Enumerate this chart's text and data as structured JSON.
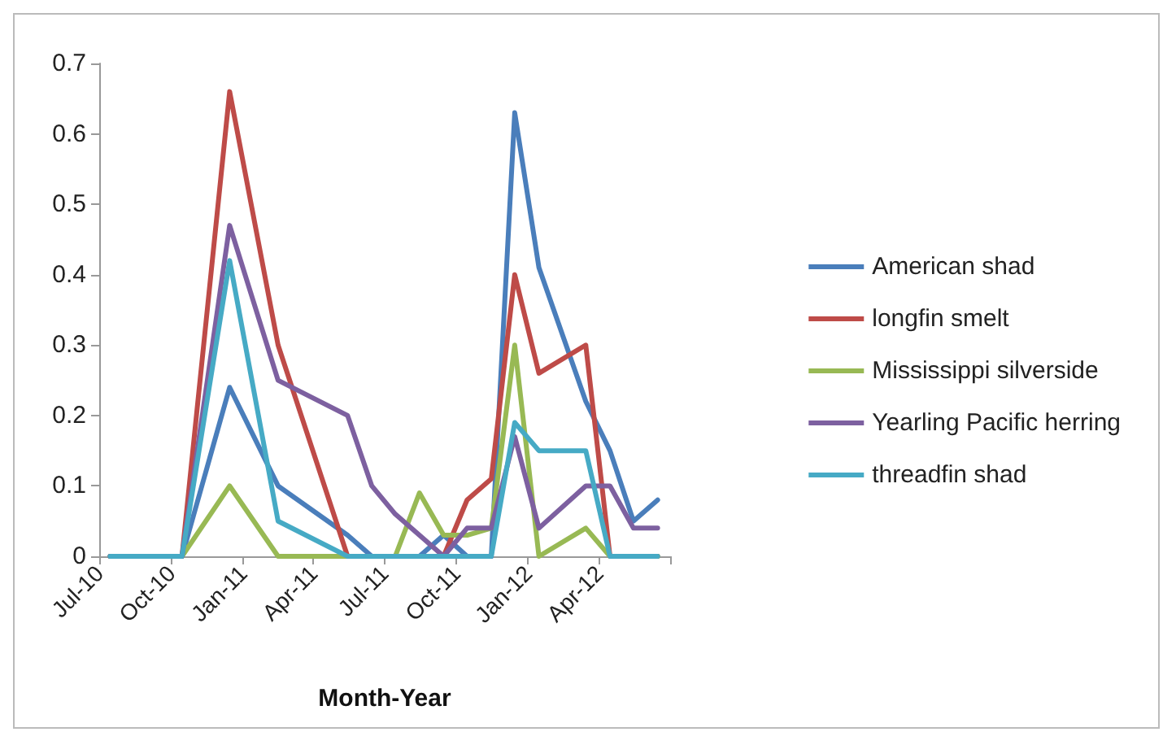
{
  "chart_data": {
    "type": "line",
    "xlabel": "Month-Year",
    "x": [
      "2010-07-15",
      "2010-10-15",
      "2010-12-15",
      "2011-02-15",
      "2011-05-15",
      "2011-06-15",
      "2011-07-15",
      "2011-08-15",
      "2011-09-15",
      "2011-10-15",
      "2011-11-15",
      "2011-12-15",
      "2012-01-15",
      "2012-03-15",
      "2012-04-15",
      "2012-05-15",
      "2012-06-15"
    ],
    "series": [
      {
        "name": "American shad",
        "color": "#4a7ebb",
        "values": [
          0,
          0,
          0.24,
          0.1,
          0.03,
          0,
          0,
          0,
          0.03,
          0,
          0,
          0.63,
          0.41,
          0.22,
          0.15,
          0.05,
          0.08
        ]
      },
      {
        "name": "longfin smelt",
        "color": "#be4b48",
        "values": [
          0,
          0,
          0.66,
          0.3,
          0,
          0,
          0,
          0,
          0,
          0.08,
          0.11,
          0.4,
          0.26,
          0.3,
          0,
          0,
          0
        ]
      },
      {
        "name": "Mississippi silverside",
        "color": "#98b954",
        "values": [
          0,
          0,
          0.1,
          0,
          0,
          0,
          0,
          0.09,
          0.03,
          0.03,
          0.04,
          0.3,
          0,
          0.04,
          0,
          0,
          0
        ]
      },
      {
        "name": "Yearling Pacific herring",
        "color": "#7d60a0",
        "values": [
          0,
          0,
          0.47,
          0.25,
          0.2,
          0.1,
          0.06,
          0.03,
          0,
          0.04,
          0.04,
          0.17,
          0.04,
          0.1,
          0.1,
          0.04,
          0.04
        ]
      },
      {
        "name": "threadfin shad",
        "color": "#46aac5",
        "values": [
          0,
          0,
          0.42,
          0.05,
          0,
          0,
          0,
          0,
          0,
          0,
          0,
          0.19,
          0.15,
          0.15,
          0,
          0,
          0
        ]
      }
    ],
    "xlim": [
      "2010-07-01",
      "2012-07-01"
    ],
    "xticks": [
      {
        "value": "2010-07-01",
        "label": "Jul-10"
      },
      {
        "value": "2010-10-01",
        "label": "Oct-10"
      },
      {
        "value": "2011-01-01",
        "label": "Jan-11"
      },
      {
        "value": "2011-04-01",
        "label": "Apr-11"
      },
      {
        "value": "2011-07-01",
        "label": "Jul-11"
      },
      {
        "value": "2011-10-01",
        "label": "Oct-11"
      },
      {
        "value": "2012-01-01",
        "label": "Jan-12"
      },
      {
        "value": "2012-04-01",
        "label": "Apr-12"
      },
      {
        "value": "2012-07-01",
        "label": null
      }
    ],
    "ylim": [
      0,
      0.7
    ],
    "yticks": [
      0,
      0.1,
      0.2,
      0.3,
      0.4,
      0.5,
      0.6,
      0.7
    ],
    "grid": false,
    "legend": "right",
    "marker": "none",
    "line_style": "solid"
  }
}
